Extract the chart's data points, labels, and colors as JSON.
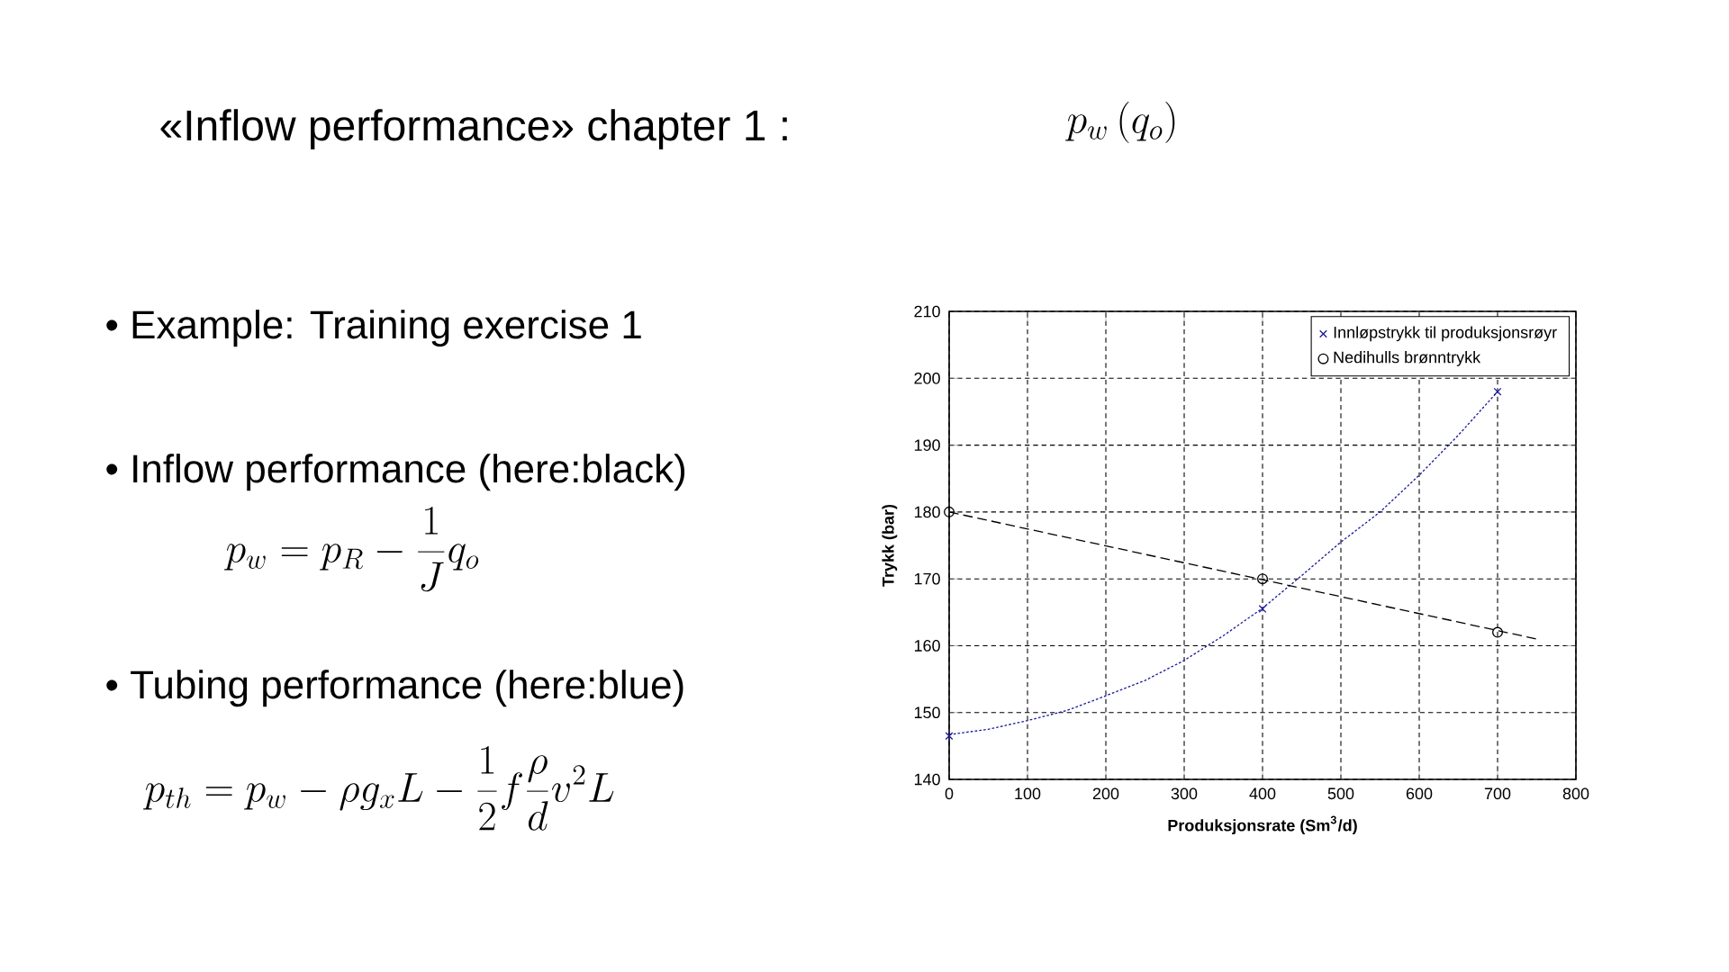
{
  "chart_data": {
    "type": "line",
    "title": "«Inflow performance» chapter 1 :",
    "xlabel": "Produksjonsrate (Sm$^{3}$/d)",
    "ylabel": "Trykk (bar)",
    "annotations": [
      "• Example: Training exercise 1",
      "• Inflow performance (here:black)",
      "p_w = p_R - \\frac{1}{J} q_o",
      "• Tubing performance  (here:blue)",
      "p_{th} = p_w - \\rho g_x L - \\frac{1}{2} f \\frac{\\rho}{d} v^2 L",
      "p_w\\left(q_o\\right)"
    ],
    "xlim": [
      0,
      800
    ],
    "ylim": [
      140,
      210
    ],
    "xticks": [
      0,
      100,
      200,
      300,
      400,
      500,
      600,
      700,
      800
    ],
    "yticks": [
      140,
      150,
      160,
      170,
      180,
      190,
      200,
      210
    ],
    "grid": true,
    "legend": "top right",
    "series": [
      {
        "name": "Innløpstrykk til produksjonsrøyr",
        "type": "scatter",
        "marker": "cross",
        "color": "#1c1c9c",
        "x": [
          0,
          400,
          700
        ],
        "values": [
          146.5,
          165.5,
          198
        ]
      },
      {
        "name": "Nedihulls brønntrykk",
        "type": "scatter",
        "marker": "circle",
        "color": "#000000",
        "x": [
          0,
          400,
          700
        ],
        "values": [
          180,
          170,
          162
        ]
      },
      {
        "type": "line",
        "marker": "none",
        "line_style": "dotted",
        "color": "#1c1c9c",
        "x": [
          0,
          50,
          100,
          150,
          200,
          250,
          300,
          350,
          400,
          450,
          500,
          550,
          600,
          650,
          700
        ],
        "values": [
          146.7,
          147.5,
          148.8,
          150.3,
          152.5,
          154.8,
          157.8,
          161.5,
          165.6,
          170.5,
          175.5,
          180,
          185.5,
          191.5,
          198
        ]
      },
      {
        "type": "line",
        "marker": "none",
        "line_style": "dashed",
        "color": "#000000",
        "x": [
          0,
          750
        ],
        "values": [
          180,
          161
        ]
      }
    ]
  }
}
